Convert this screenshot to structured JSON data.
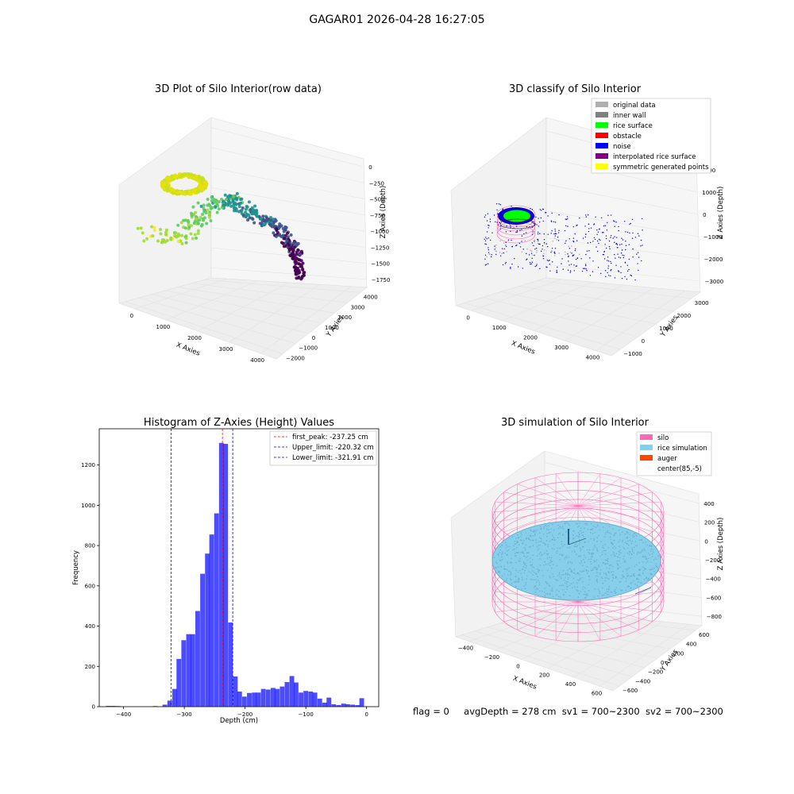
{
  "suptitle": "GAGAR01 2026-04-28 16:27:05",
  "status": {
    "flag": "flag = 0",
    "avg_depth": "avgDepth = 278 cm",
    "sv1": "sv1 = 700~2300",
    "sv2": "sv2 = 700~2300"
  },
  "panels": {
    "raw3d": {
      "title": "3D Plot of Silo Interior(row data)",
      "xlabel": "X Axies",
      "ylabel": "Y Axies",
      "zlabel": "Z Axies (Depth)",
      "xticks": [
        "0",
        "1000",
        "2000",
        "3000",
        "4000"
      ],
      "yticks": [
        "−2000",
        "−1000",
        "0",
        "1000",
        "2000",
        "3000",
        "4000"
      ],
      "zticks": [
        "0",
        "−250",
        "−500",
        "−750",
        "−1000",
        "−1250",
        "−1500",
        "−1750"
      ]
    },
    "classify3d": {
      "title": "3D classify of Silo Interior",
      "xlabel": "X Axies",
      "ylabel": "Y Axies",
      "zlabel": "Z Axies (Depth)",
      "xticks": [
        "0",
        "1000",
        "2000",
        "3000",
        "4000"
      ],
      "yticks": [
        "−1000",
        "0",
        "1000",
        "2000",
        "3000"
      ],
      "zticks": [
        "2000",
        "1000",
        "0",
        "−1000",
        "−2000",
        "−3000"
      ],
      "legend": [
        {
          "label": "original data",
          "color": "#b0b0b0"
        },
        {
          "label": "inner wall",
          "color": "#808080"
        },
        {
          "label": "rice surface",
          "color": "#00ff00"
        },
        {
          "label": "obstacle",
          "color": "#ff0000"
        },
        {
          "label": "noise",
          "color": "#0000ff"
        },
        {
          "label": "interpolated rice surface",
          "color": "#800080"
        },
        {
          "label": "symmetric generated points",
          "color": "#ffff00"
        }
      ]
    },
    "sim3d": {
      "title": "3D simulation of Silo Interior",
      "xlabel": "X Axies",
      "ylabel": "Y Axies",
      "zlabel": "Z Axies (Depth)",
      "xticks": [
        "−400",
        "−200",
        "0",
        "200",
        "400",
        "600"
      ],
      "yticks": [
        "−600",
        "−400",
        "−200",
        "0",
        "200",
        "400",
        "600"
      ],
      "zticks": [
        "400",
        "200",
        "0",
        "−200",
        "−400",
        "−600",
        "−800"
      ],
      "legend": [
        {
          "label": "silo",
          "color": "#ff69b4"
        },
        {
          "label": "rice simulation",
          "color": "#87ceeb"
        },
        {
          "label": "auger",
          "color": "#ff4500"
        },
        {
          "label": "center(85,-5)",
          "color": "#ffffff"
        }
      ]
    }
  },
  "chart_data": [
    {
      "type": "scatter",
      "subtype": "3d",
      "title": "3D Plot of Silo Interior(row data)",
      "xlabel": "X Axies",
      "ylabel": "Y Axies",
      "zlabel": "Z Axies (Depth)",
      "xlim": [
        -500,
        4500
      ],
      "ylim": [
        -2000,
        4000
      ],
      "zlim": [
        -2000,
        0
      ]
    },
    {
      "type": "scatter",
      "subtype": "3d",
      "title": "3D classify of Silo Interior",
      "xlabel": "X Axies",
      "ylabel": "Y Axies",
      "zlabel": "Z Axies (Depth)",
      "xlim": [
        -500,
        4500
      ],
      "ylim": [
        -1500,
        3500
      ],
      "zlim": [
        -3500,
        2500
      ],
      "legend_position": "upper right"
    },
    {
      "type": "bar",
      "subtype": "histogram",
      "title": "Histogram of Z-Axies (Height) Values",
      "xlabel": "Depth (cm)",
      "ylabel": "Frequency",
      "xlim": [
        -440,
        20
      ],
      "ylim": [
        0,
        1380
      ],
      "xticks": [
        -400,
        -300,
        -200,
        -100,
        0
      ],
      "yticks": [
        0,
        200,
        400,
        600,
        800,
        1000,
        1200
      ],
      "bin_width": 7.7,
      "color": "#0000ff",
      "bins": [
        [
          -425,
          4
        ],
        [
          -417,
          4
        ],
        [
          -409,
          3
        ],
        [
          -348,
          3
        ],
        [
          -332,
          10
        ],
        [
          -324,
          30
        ],
        [
          -316,
          88
        ],
        [
          -309,
          237
        ],
        [
          -301,
          330
        ],
        [
          -293,
          360
        ],
        [
          -286,
          360
        ],
        [
          -278,
          475
        ],
        [
          -270,
          660
        ],
        [
          -262,
          760
        ],
        [
          -255,
          855
        ],
        [
          -247,
          960
        ],
        [
          -239,
          1310
        ],
        [
          -232,
          1305
        ],
        [
          -224,
          418
        ],
        [
          -216,
          150
        ],
        [
          -209,
          75
        ],
        [
          -201,
          50
        ],
        [
          -193,
          68
        ],
        [
          -185,
          70
        ],
        [
          -178,
          70
        ],
        [
          -170,
          88
        ],
        [
          -162,
          85
        ],
        [
          -154,
          93
        ],
        [
          -147,
          88
        ],
        [
          -139,
          100
        ],
        [
          -131,
          122
        ],
        [
          -123,
          152
        ],
        [
          -116,
          120
        ],
        [
          -108,
          70
        ],
        [
          -100,
          78
        ],
        [
          -92,
          75
        ],
        [
          -85,
          70
        ],
        [
          -77,
          40
        ],
        [
          -69,
          20
        ],
        [
          -62,
          45
        ],
        [
          -54,
          12
        ],
        [
          -46,
          8
        ],
        [
          -38,
          15
        ],
        [
          -31,
          12
        ],
        [
          -23,
          10
        ],
        [
          -15,
          8
        ],
        [
          -8,
          42
        ]
      ],
      "vlines": [
        {
          "label": "first_peak: -237.25 cm",
          "x": -237.25,
          "color": "#ff0000",
          "style": "dashed"
        },
        {
          "label": "Upper_limit: -220.32 cm",
          "x": -220.32,
          "color": "#0000ff",
          "style": "dashed"
        },
        {
          "label": "Lower_limit: -321.91 cm",
          "x": -321.91,
          "color": "#0000ff",
          "style": "dashed"
        }
      ],
      "legend_position": "upper right"
    },
    {
      "type": "scatter",
      "subtype": "3d-surface",
      "title": "3D simulation of Silo Interior",
      "xlabel": "X Axies",
      "ylabel": "Y Axies",
      "zlabel": "Z Axies (Depth)",
      "xlim": [
        -550,
        750
      ],
      "ylim": [
        -700,
        700
      ],
      "zlim": [
        -900,
        500
      ],
      "legend_position": "upper right"
    }
  ]
}
